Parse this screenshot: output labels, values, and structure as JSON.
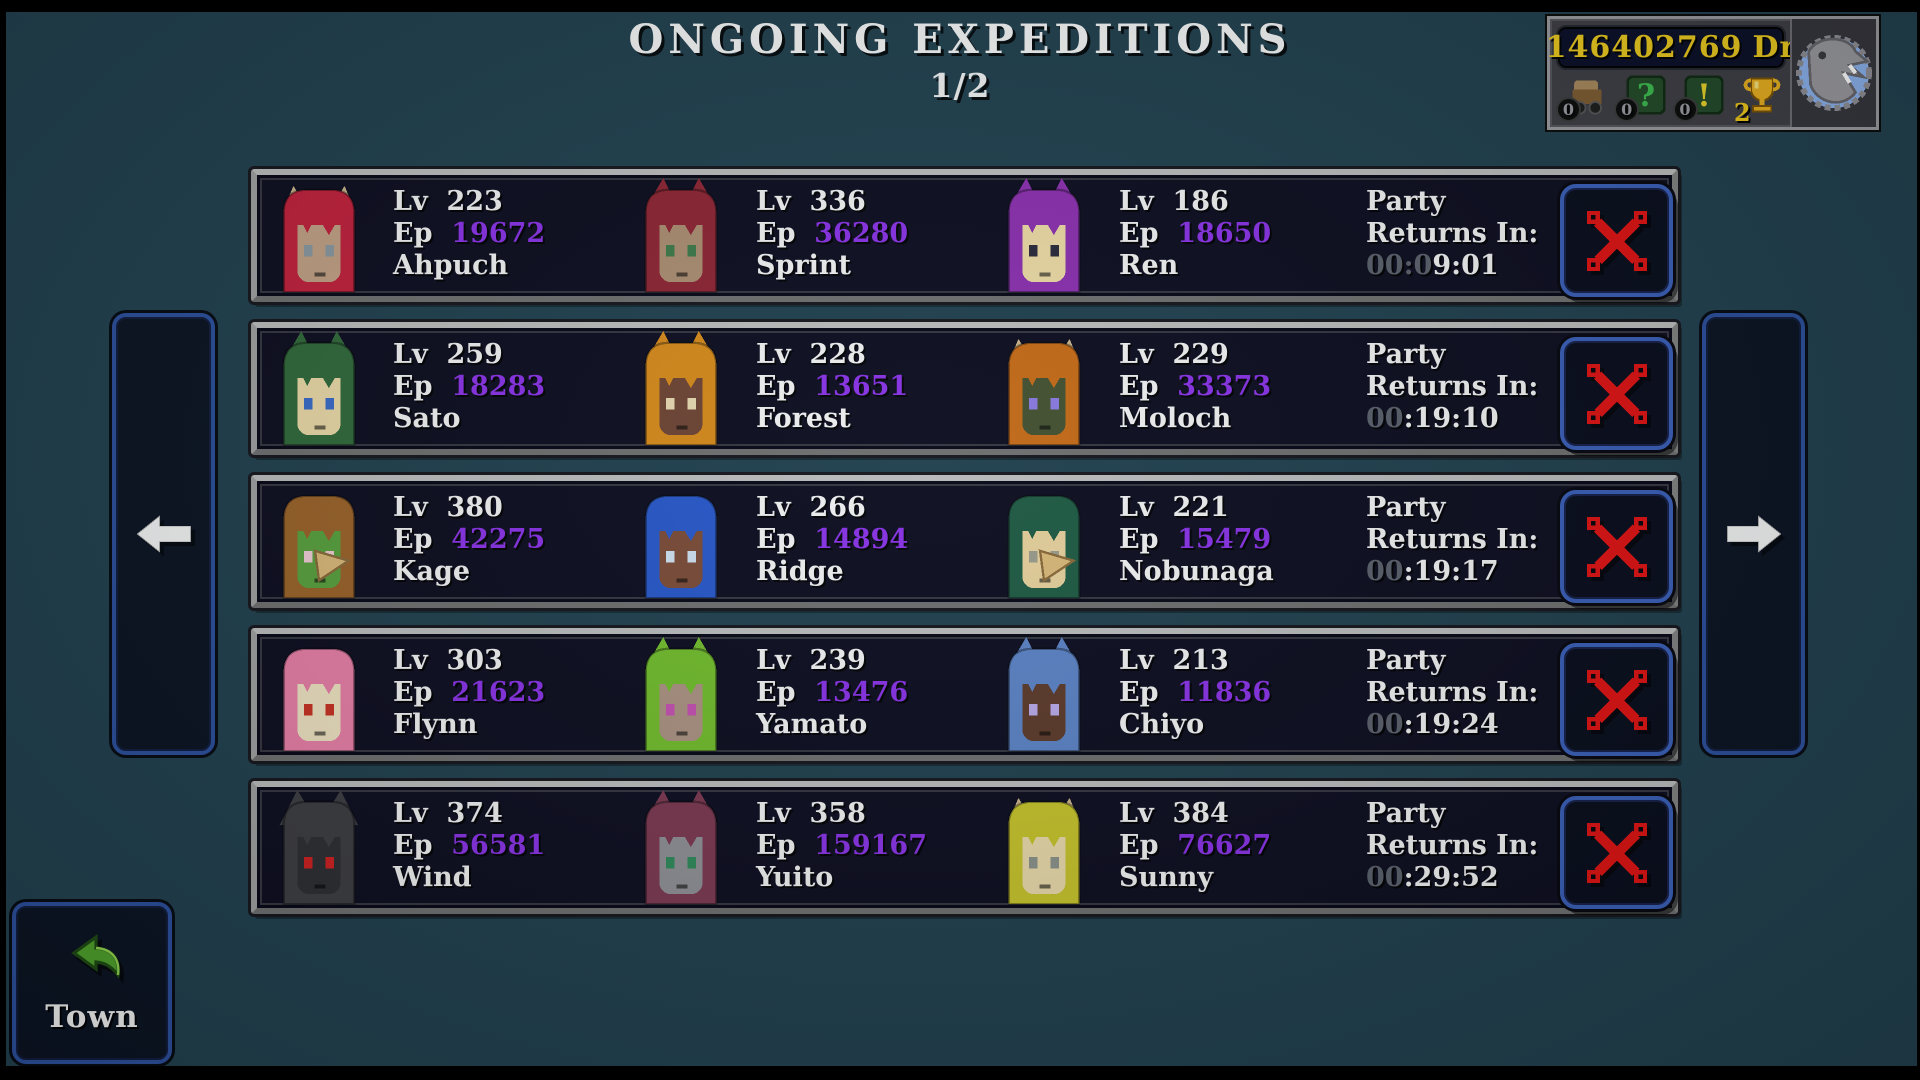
{
  "page": {
    "title": "ONGOING EXPEDITIONS",
    "page_indicator": "1/2"
  },
  "colors": {
    "background": "#21404e",
    "row_bg": "#0d0d1f",
    "ep_purple": "#8a32e6",
    "timer_dim": "#5b606b",
    "currency_gold": "#ecc91d",
    "cancel_red": "#e01212",
    "panel_border_blue": "#2c4f9c"
  },
  "hud": {
    "currency_amount": "146402769",
    "currency_unit": "Dr",
    "mascot_icon": "dino-head-icon",
    "counters": [
      {
        "icon": "wagon-icon",
        "count": "0"
      },
      {
        "icon": "quest-question-icon",
        "count": "0",
        "glyph": "?"
      },
      {
        "icon": "quest-exclaim-icon",
        "count": "0",
        "glyph": "!"
      },
      {
        "icon": "trophy-icon",
        "count": "2"
      }
    ]
  },
  "expeditions": {
    "lv_label": "Lv",
    "ep_label": "Ep",
    "party_label_line1": "Party",
    "party_label_line2": "Returns In:",
    "rows": [
      {
        "timer_dim": "00:0",
        "timer_bright": "9:01",
        "members": [
          {
            "lv": "223",
            "ep": "19672",
            "name": "Ahpuch",
            "hair": "#c1203b",
            "skin": "#c2a084",
            "eye": "#8a98a0",
            "ears": "horn",
            "beak": false
          },
          {
            "lv": "336",
            "ep": "36280",
            "name": "Sprint",
            "hair": "#8e2433",
            "skin": "#ab8d70",
            "eye": "#3f7a4a",
            "ears": "cat",
            "beak": false
          },
          {
            "lv": "186",
            "ep": "18650",
            "name": "Ren",
            "hair": "#8b2fae",
            "skin": "#ecd9a4",
            "eye": "#2a2a3a",
            "ears": "cat",
            "beak": false
          }
        ]
      },
      {
        "timer_dim": "00",
        "timer_bright": ":19:10",
        "members": [
          {
            "lv": "259",
            "ep": "18283",
            "name": "Sato",
            "hair": "#31693a",
            "skin": "#ead9a6",
            "eye": "#3a6ac8",
            "ears": "cat",
            "beak": false
          },
          {
            "lv": "228",
            "ep": "13651",
            "name": "Forest",
            "hair": "#d6891a",
            "skin": "#6e4433",
            "eye": "#e8d8b0",
            "ears": "cat",
            "beak": false
          },
          {
            "lv": "229",
            "ep": "33373",
            "name": "Moloch",
            "hair": "#c66a16",
            "skin": "#44502f",
            "eye": "#8a7ae0",
            "ears": "horn",
            "beak": false
          }
        ]
      },
      {
        "timer_dim": "00",
        "timer_bright": ":19:17",
        "members": [
          {
            "lv": "380",
            "ep": "42275",
            "name": "Kage",
            "hair": "#9a6228",
            "skin": "#58a03c",
            "eye": "#f0ccd4",
            "ears": "none",
            "beak": true
          },
          {
            "lv": "266",
            "ep": "14894",
            "name": "Ridge",
            "hair": "#2857c8",
            "skin": "#7c4b36",
            "eye": "#cfe0f0",
            "ears": "none",
            "beak": false
          },
          {
            "lv": "221",
            "ep": "15479",
            "name": "Nobunaga",
            "hair": "#1f5a42",
            "skin": "#e6cf9a",
            "eye": "#9a9a8a",
            "ears": "none",
            "beak": true
          }
        ]
      },
      {
        "timer_dim": "00",
        "timer_bright": ":19:24",
        "members": [
          {
            "lv": "303",
            "ep": "21623",
            "name": "Flynn",
            "hair": "#e87fa6",
            "skin": "#efe2c0",
            "eye": "#c83020",
            "ears": "none",
            "beak": false
          },
          {
            "lv": "239",
            "ep": "13476",
            "name": "Yamato",
            "hair": "#72bb2c",
            "skin": "#ab9180",
            "eye": "#c550b0",
            "ears": "cat",
            "beak": false
          },
          {
            "lv": "213",
            "ep": "11836",
            "name": "Chiyo",
            "hair": "#5c82c4",
            "skin": "#5d3a2a",
            "eye": "#b8a8e8",
            "ears": "cat",
            "beak": false
          }
        ]
      },
      {
        "timer_dim": "00",
        "timer_bright": ":29:52",
        "members": [
          {
            "lv": "374",
            "ep": "56581",
            "name": "Wind",
            "hair": "#3d3d41",
            "skin": "#2e2e32",
            "eye": "#d02020",
            "ears": "wolf",
            "beak": false
          },
          {
            "lv": "358",
            "ep": "159167",
            "name": "Yuito",
            "hair": "#7c3850",
            "skin": "#909095",
            "eye": "#2f8a5a",
            "ears": "cat",
            "beak": false
          },
          {
            "lv": "384",
            "ep": "76627",
            "name": "Sunny",
            "hair": "#c6c22a",
            "skin": "#e8d8a8",
            "eye": "#8a9088",
            "ears": "horn",
            "beak": false
          }
        ]
      }
    ]
  },
  "nav": {
    "left_arrow": "previous-page",
    "right_arrow": "next-page"
  },
  "footer": {
    "town_label": "Town"
  }
}
